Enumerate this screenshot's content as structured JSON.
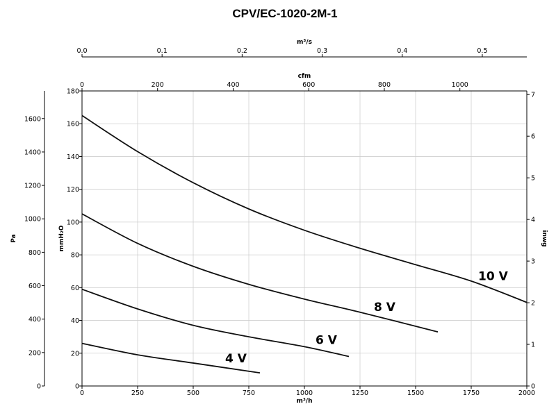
{
  "chart_data": {
    "type": "line",
    "title": "CPV/EC-1020-2M-1",
    "x_axis": {
      "label": "m³/h",
      "range": [
        0,
        2000
      ],
      "ticks": [
        0,
        250,
        500,
        750,
        1000,
        1250,
        1500,
        1750,
        2000
      ]
    },
    "y_axis": {
      "label": "mmH₂O",
      "range": [
        0,
        180
      ],
      "ticks": [
        0,
        20,
        40,
        60,
        80,
        100,
        120,
        140,
        160,
        180
      ]
    },
    "top_axis_m3s": {
      "label": "m³/s",
      "range": [
        0,
        0.5556
      ],
      "ticks": [
        "0.0",
        "0.1",
        "0.2",
        "0.3",
        "0.4",
        "0.5"
      ]
    },
    "top_axis_cfm": {
      "label": "cfm",
      "range": [
        0,
        1177.1
      ],
      "ticks": [
        0,
        200,
        400,
        600,
        800,
        1000
      ]
    },
    "left_axis_pa": {
      "label": "Pa",
      "range": [
        0,
        1765.2
      ],
      "ticks": [
        0,
        200,
        400,
        600,
        800,
        1000,
        1200,
        1400,
        1600
      ]
    },
    "right_axis_inwg": {
      "label": "inwg",
      "range": [
        0,
        7.087
      ],
      "ticks": [
        0,
        1,
        2,
        3,
        4,
        5,
        6,
        7
      ]
    },
    "grid": true,
    "series": [
      {
        "name": "10 V",
        "x": [
          0,
          250,
          500,
          750,
          1000,
          1250,
          1500,
          1750,
          2000
        ],
        "y": [
          165,
          143,
          124,
          108,
          95,
          84,
          74,
          64,
          51
        ]
      },
      {
        "name": "8 V",
        "x": [
          0,
          250,
          500,
          750,
          1000,
          1250,
          1600
        ],
        "y": [
          105,
          87,
          73,
          62,
          53,
          45,
          33
        ]
      },
      {
        "name": "6 V",
        "x": [
          0,
          250,
          500,
          750,
          1000,
          1200
        ],
        "y": [
          59,
          47,
          37,
          30,
          24,
          18
        ]
      },
      {
        "name": "4 V",
        "x": [
          0,
          250,
          500,
          800
        ],
        "y": [
          26,
          19,
          14,
          8
        ]
      }
    ]
  }
}
